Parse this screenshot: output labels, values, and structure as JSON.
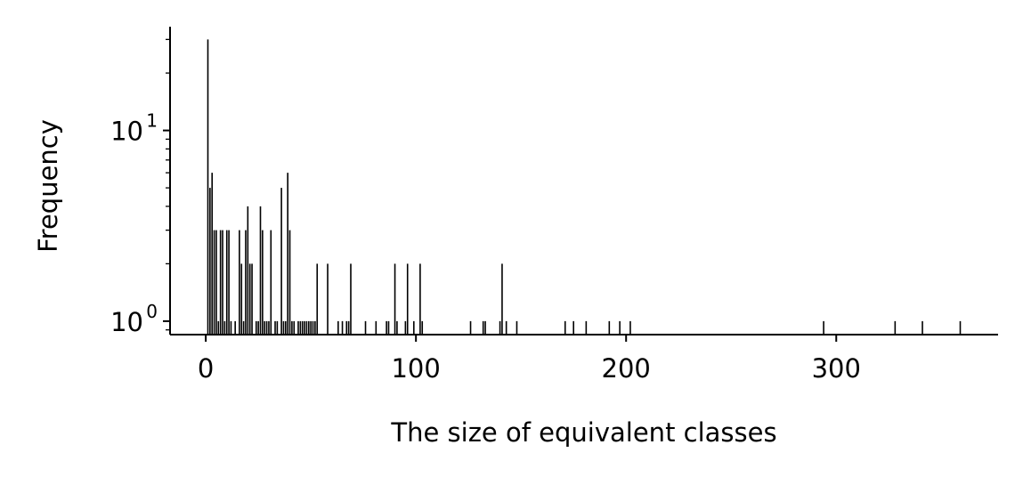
{
  "chart_data": {
    "type": "bar",
    "xlabel": "The size of equivalent classes",
    "ylabel": "Frequency",
    "xlim": [
      -17,
      377
    ],
    "ylim": [
      0.85,
      35
    ],
    "yscale": "log",
    "x_ticks": [
      {
        "value": 0,
        "label": "0"
      },
      {
        "value": 100,
        "label": "100"
      },
      {
        "value": 200,
        "label": "200"
      },
      {
        "value": 300,
        "label": "300"
      }
    ],
    "y_ticks": [
      {
        "value": 1,
        "base": "10",
        "exp": "0"
      },
      {
        "value": 10,
        "base": "10",
        "exp": "1"
      }
    ],
    "bar_color": "#000000",
    "x": [
      1,
      2,
      3,
      4,
      5,
      6,
      7,
      8,
      9,
      10,
      11,
      12,
      14,
      16,
      17,
      18,
      19,
      20,
      21,
      22,
      24,
      25,
      26,
      27,
      28,
      29,
      30,
      31,
      33,
      34,
      36,
      37,
      38,
      39,
      40,
      41,
      42,
      44,
      45,
      46,
      47,
      48,
      49,
      50,
      51,
      52,
      53,
      58,
      63,
      65,
      67,
      68,
      69,
      76,
      81,
      86,
      87,
      90,
      91,
      95,
      96,
      99,
      102,
      103,
      126,
      132,
      133,
      140,
      141,
      143,
      148,
      171,
      175,
      181,
      192,
      197,
      202,
      294,
      328,
      341,
      359
    ],
    "values": [
      30,
      5,
      6,
      3,
      3,
      1,
      3,
      3,
      1,
      3,
      3,
      1,
      1,
      3,
      2,
      1,
      3,
      4,
      2,
      2,
      1,
      1,
      4,
      3,
      1,
      1,
      1,
      3,
      1,
      1,
      5,
      1,
      1,
      6,
      3,
      1,
      1,
      1,
      1,
      1,
      1,
      1,
      1,
      1,
      1,
      1,
      2,
      2,
      1,
      1,
      1,
      1,
      2,
      1,
      1,
      1,
      1,
      2,
      1,
      1,
      2,
      1,
      2,
      1,
      1,
      1,
      1,
      1,
      2,
      1,
      1,
      1,
      1,
      1,
      1,
      1,
      1,
      1,
      1,
      1,
      1
    ]
  }
}
